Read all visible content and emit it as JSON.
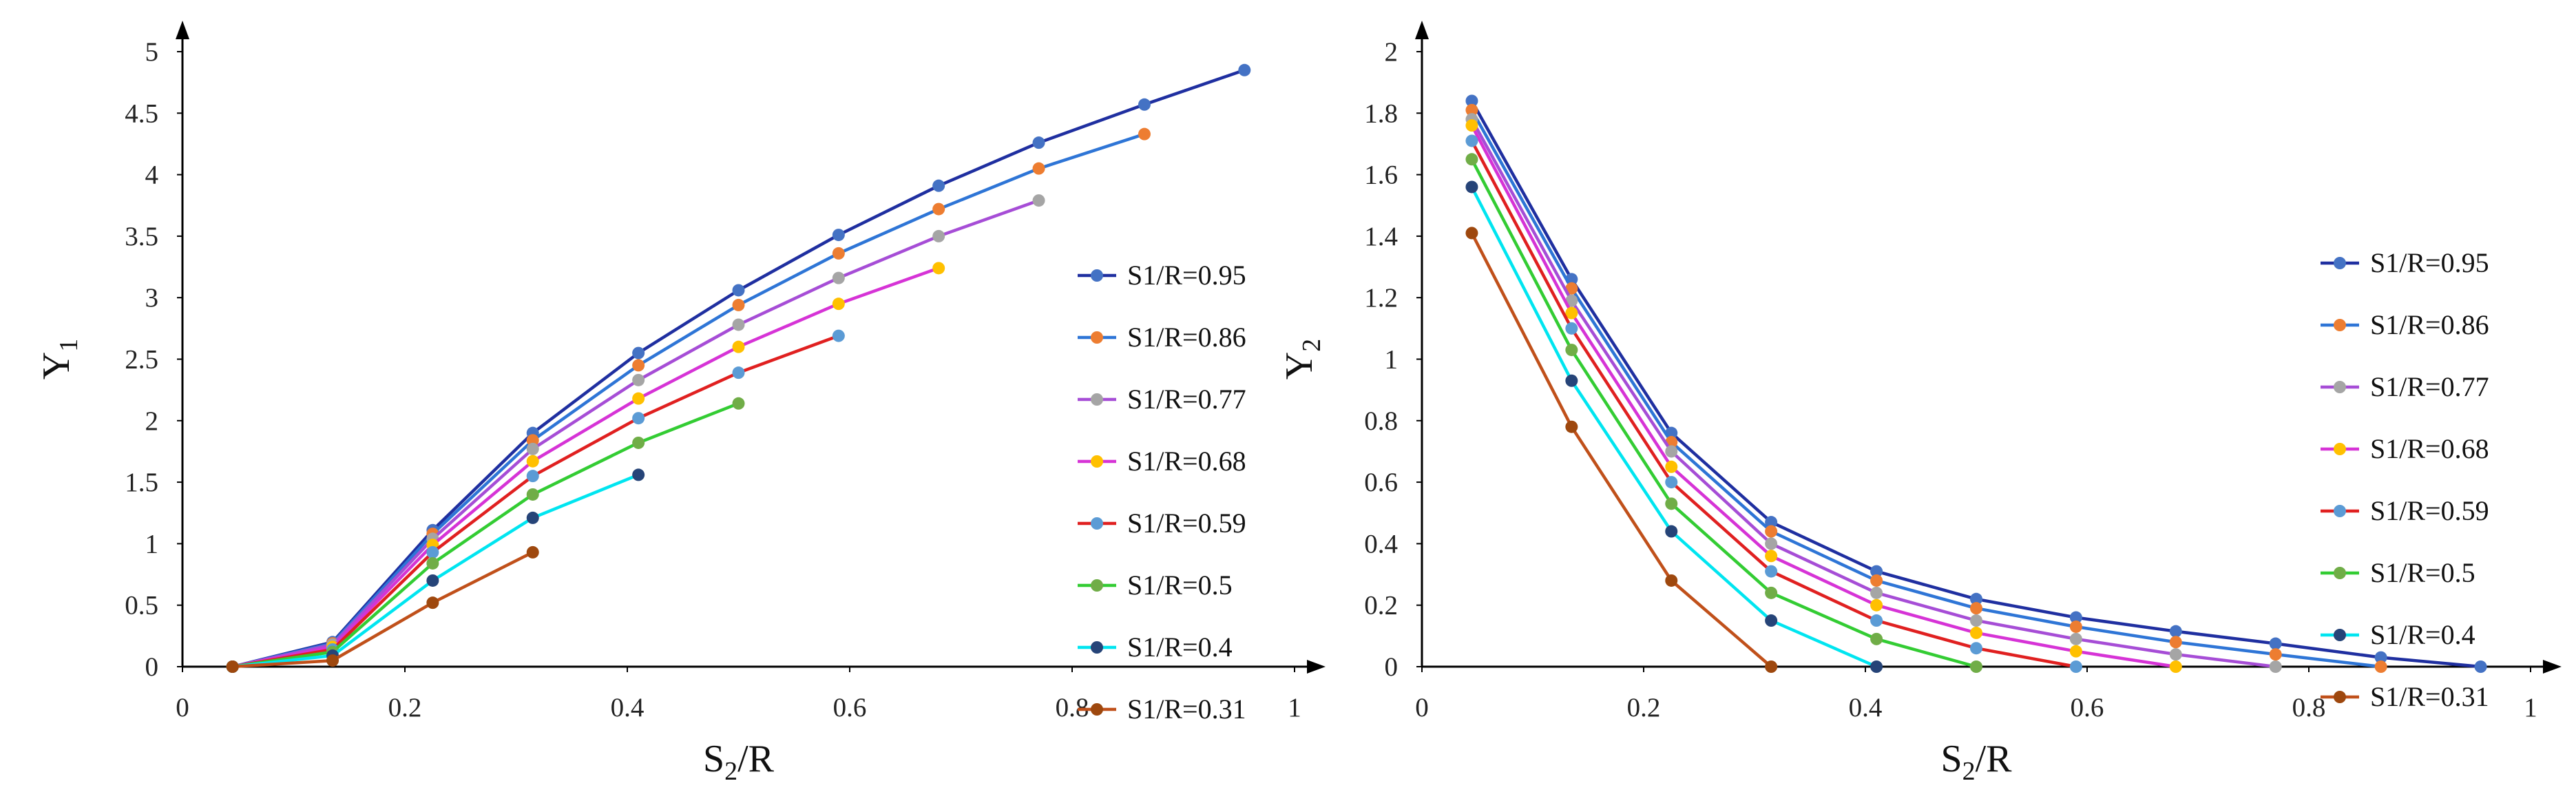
{
  "chart_data": [
    {
      "type": "line",
      "title": "",
      "xlabel_main": "S",
      "xlabel_sub": "2",
      "xlabel_tail": "/R",
      "ylabel_main": "Y",
      "ylabel_sub": "1",
      "xlim": [
        0,
        1
      ],
      "ylim": [
        0,
        5
      ],
      "xticks": [
        0,
        0.2,
        0.4,
        0.6,
        0.8,
        1
      ],
      "xtick_labels": [
        "0",
        "0.2",
        "0.4",
        "0.6",
        "0.8",
        "1"
      ],
      "yticks": [
        0,
        0.5,
        1,
        1.5,
        2,
        2.5,
        3,
        3.5,
        4,
        4.5,
        5
      ],
      "ytick_labels": [
        "0",
        "0.5",
        "1",
        "1.5",
        "2",
        "2.5",
        "3",
        "3.5",
        "4",
        "4.5",
        "5"
      ],
      "legend_position": "right",
      "grid": false,
      "series": [
        {
          "name": "S1/R=0.95",
          "line_color": "#1f2fa0",
          "marker_color": "#4472c4",
          "x": [
            0.045,
            0.135,
            0.225,
            0.315,
            0.41,
            0.5,
            0.59,
            0.68,
            0.77,
            0.865,
            0.955
          ],
          "y": [
            0,
            0.2,
            1.11,
            1.9,
            2.55,
            3.06,
            3.51,
            3.91,
            4.26,
            4.57,
            4.85
          ]
        },
        {
          "name": "S1/R=0.86",
          "line_color": "#2e75d6",
          "marker_color": "#ed7d31",
          "x": [
            0.045,
            0.135,
            0.225,
            0.315,
            0.41,
            0.5,
            0.59,
            0.68,
            0.77,
            0.865
          ],
          "y": [
            0,
            0.19,
            1.08,
            1.84,
            2.45,
            2.94,
            3.36,
            3.72,
            4.05,
            4.33
          ]
        },
        {
          "name": "S1/R=0.77",
          "line_color": "#a64dd6",
          "marker_color": "#a5a5a5",
          "x": [
            0.045,
            0.135,
            0.225,
            0.315,
            0.41,
            0.5,
            0.59,
            0.68,
            0.77
          ],
          "y": [
            0,
            0.18,
            1.04,
            1.77,
            2.33,
            2.78,
            3.16,
            3.5,
            3.79
          ]
        },
        {
          "name": "S1/R=0.68",
          "line_color": "#d633d6",
          "marker_color": "#ffc000",
          "x": [
            0.045,
            0.135,
            0.225,
            0.315,
            0.41,
            0.5,
            0.59,
            0.68
          ],
          "y": [
            0,
            0.16,
            0.99,
            1.67,
            2.18,
            2.6,
            2.95,
            3.24
          ]
        },
        {
          "name": "S1/R=0.59",
          "line_color": "#e02020",
          "marker_color": "#5b9bd5",
          "x": [
            0.045,
            0.135,
            0.225,
            0.315,
            0.41,
            0.5,
            0.59
          ],
          "y": [
            0,
            0.14,
            0.93,
            1.55,
            2.02,
            2.39,
            2.69
          ]
        },
        {
          "name": "S1/R=0.5",
          "line_color": "#33cc33",
          "marker_color": "#70ad47",
          "x": [
            0.045,
            0.135,
            0.225,
            0.315,
            0.41,
            0.5
          ],
          "y": [
            0,
            0.12,
            0.84,
            1.4,
            1.82,
            2.14
          ]
        },
        {
          "name": "S1/R=0.4",
          "line_color": "#00e5f0",
          "marker_color": "#264478",
          "x": [
            0.045,
            0.135,
            0.225,
            0.315,
            0.41
          ],
          "y": [
            0,
            0.09,
            0.7,
            1.21,
            1.56
          ]
        },
        {
          "name": "S1/R=0.31",
          "line_color": "#c0501a",
          "marker_color": "#9e480e",
          "x": [
            0.045,
            0.135,
            0.225,
            0.315
          ],
          "y": [
            0,
            0.05,
            0.52,
            0.93
          ]
        }
      ]
    },
    {
      "type": "line",
      "title": "",
      "xlabel_main": "S",
      "xlabel_sub": "2",
      "xlabel_tail": "/R",
      "ylabel_main": "Y",
      "ylabel_sub": "2",
      "xlim": [
        0,
        1
      ],
      "ylim": [
        0,
        2
      ],
      "xticks": [
        0,
        0.2,
        0.4,
        0.6,
        0.8,
        1
      ],
      "xtick_labels": [
        "0",
        "0.2",
        "0.4",
        "0.6",
        "0.8",
        "1"
      ],
      "yticks": [
        0,
        0.2,
        0.4,
        0.6,
        0.8,
        1,
        1.2,
        1.4,
        1.6,
        1.8,
        2
      ],
      "ytick_labels": [
        "0",
        "0.2",
        "0.4",
        "0.6",
        "0.8",
        "1",
        "1.2",
        "1.4",
        "1.6",
        "1.8",
        "2"
      ],
      "legend_position": "right",
      "grid": false,
      "series": [
        {
          "name": "S1/R=0.95",
          "line_color": "#1f2fa0",
          "marker_color": "#4472c4",
          "x": [
            0.045,
            0.135,
            0.225,
            0.315,
            0.41,
            0.5,
            0.59,
            0.68,
            0.77,
            0.865,
            0.955
          ],
          "y": [
            1.84,
            1.26,
            0.76,
            0.47,
            0.31,
            0.22,
            0.16,
            0.115,
            0.075,
            0.03,
            0
          ]
        },
        {
          "name": "S1/R=0.86",
          "line_color": "#2e75d6",
          "marker_color": "#ed7d31",
          "x": [
            0.045,
            0.135,
            0.225,
            0.315,
            0.41,
            0.5,
            0.59,
            0.68,
            0.77,
            0.865
          ],
          "y": [
            1.81,
            1.23,
            0.73,
            0.44,
            0.28,
            0.19,
            0.13,
            0.08,
            0.04,
            0
          ]
        },
        {
          "name": "S1/R=0.77",
          "line_color": "#a64dd6",
          "marker_color": "#a5a5a5",
          "x": [
            0.045,
            0.135,
            0.225,
            0.315,
            0.41,
            0.5,
            0.59,
            0.68,
            0.77
          ],
          "y": [
            1.78,
            1.19,
            0.7,
            0.4,
            0.24,
            0.15,
            0.09,
            0.04,
            0
          ]
        },
        {
          "name": "S1/R=0.68",
          "line_color": "#d633d6",
          "marker_color": "#ffc000",
          "x": [
            0.045,
            0.135,
            0.225,
            0.315,
            0.41,
            0.5,
            0.59,
            0.68
          ],
          "y": [
            1.76,
            1.15,
            0.65,
            0.36,
            0.2,
            0.11,
            0.05,
            0
          ]
        },
        {
          "name": "S1/R=0.59",
          "line_color": "#e02020",
          "marker_color": "#5b9bd5",
          "x": [
            0.045,
            0.135,
            0.225,
            0.315,
            0.41,
            0.5,
            0.59
          ],
          "y": [
            1.71,
            1.1,
            0.6,
            0.31,
            0.15,
            0.06,
            0
          ]
        },
        {
          "name": "S1/R=0.5",
          "line_color": "#33cc33",
          "marker_color": "#70ad47",
          "x": [
            0.045,
            0.135,
            0.225,
            0.315,
            0.41,
            0.5
          ],
          "y": [
            1.65,
            1.03,
            0.53,
            0.24,
            0.09,
            0
          ]
        },
        {
          "name": "S1/R=0.4",
          "line_color": "#00e5f0",
          "marker_color": "#264478",
          "x": [
            0.045,
            0.135,
            0.225,
            0.315,
            0.41
          ],
          "y": [
            1.56,
            0.93,
            0.44,
            0.15,
            0
          ]
        },
        {
          "name": "S1/R=0.31",
          "line_color": "#c0501a",
          "marker_color": "#9e480e",
          "x": [
            0.045,
            0.135,
            0.225,
            0.315
          ],
          "y": [
            1.41,
            0.78,
            0.28,
            0
          ]
        }
      ]
    }
  ]
}
